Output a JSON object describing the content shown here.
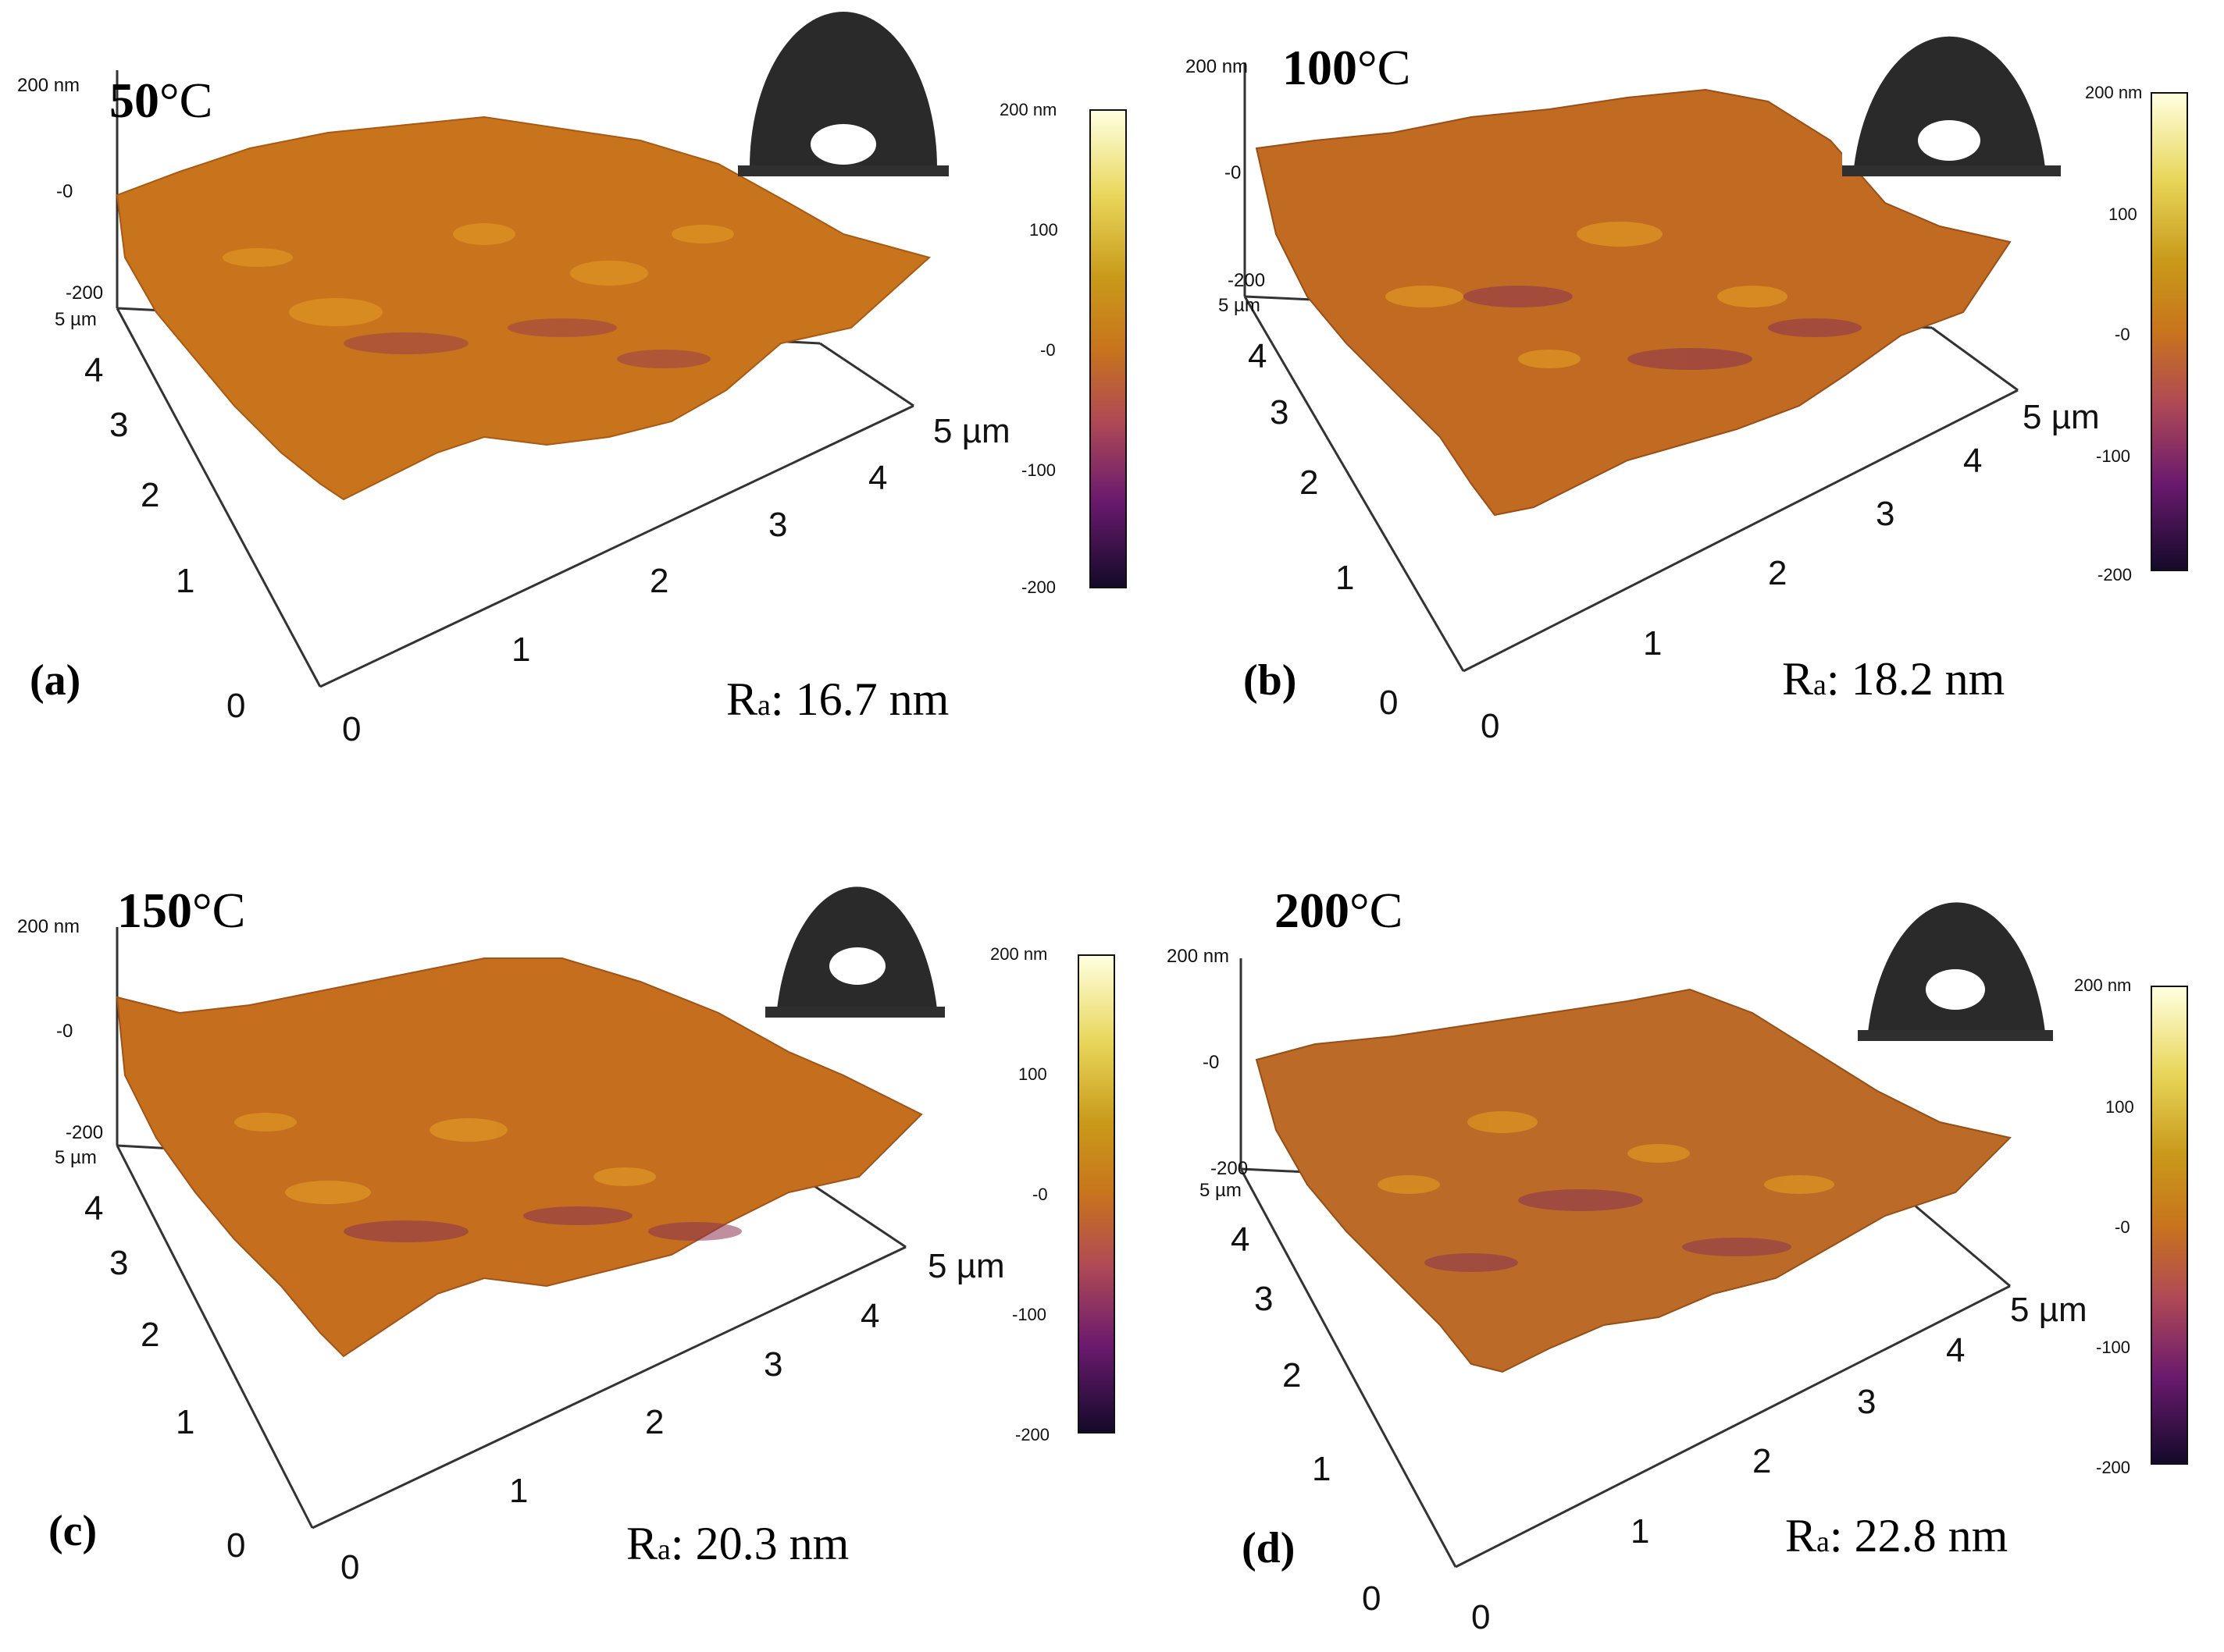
{
  "figure": {
    "panels": [
      {
        "label": "(a)",
        "temperature_num": "50",
        "temperature_unit": "°C",
        "ra_prefix": "R",
        "ra_sub": "a",
        "ra_value": ": 16.7 nm"
      },
      {
        "label": "(b)",
        "temperature_num": "100",
        "temperature_unit": "°C",
        "ra_prefix": "R",
        "ra_sub": "a",
        "ra_value": ": 18.2 nm"
      },
      {
        "label": "(c)",
        "temperature_num": "150",
        "temperature_unit": "°C",
        "ra_prefix": "R",
        "ra_sub": "a",
        "ra_value": ": 20.3 nm"
      },
      {
        "label": "(d)",
        "temperature_num": "200",
        "temperature_unit": "°C",
        "ra_prefix": "R",
        "ra_sub": "a",
        "ra_value": ": 22.8 nm"
      }
    ],
    "z_axis_ticks": [
      "200 nm",
      "-0",
      "-200"
    ],
    "xy_ticks": [
      "0",
      "1",
      "2",
      "3",
      "4",
      "5 µm"
    ],
    "colorbar_ticks": [
      "200 nm",
      "100",
      "-0",
      "-100",
      "-200"
    ],
    "colormap": [
      "#ffffe0",
      "#e8d65a",
      "#c99a1a",
      "#c8741c",
      "#b04a55",
      "#6a1a6e",
      "#140a2a"
    ]
  }
}
